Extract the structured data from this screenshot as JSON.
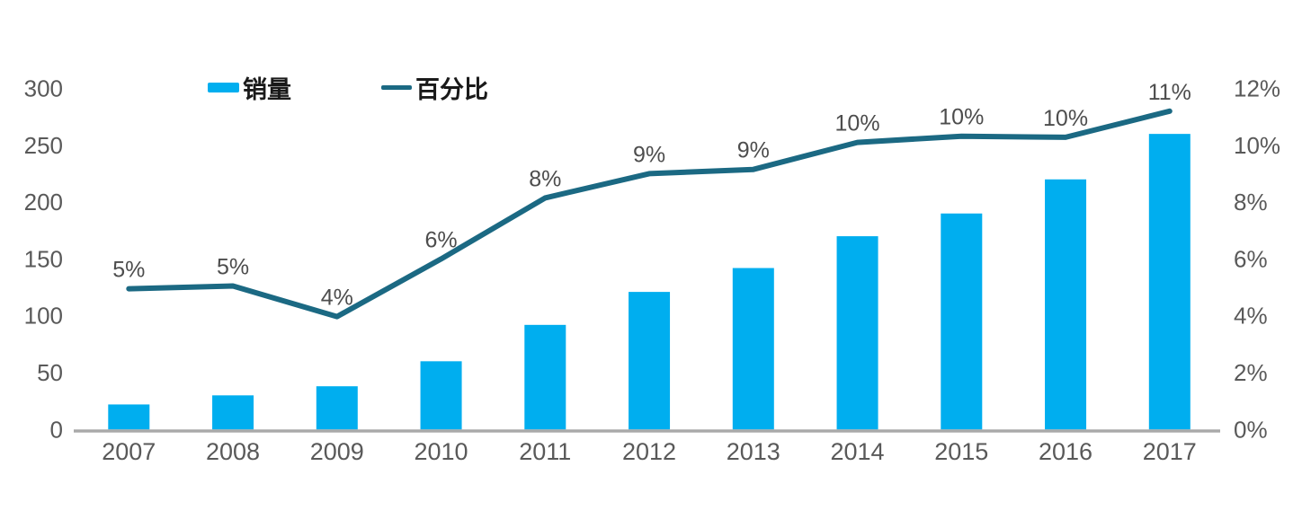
{
  "chart_data": {
    "type": "bar+line-combo",
    "title": "",
    "categories": [
      "2007",
      "2008",
      "2009",
      "2010",
      "2011",
      "2012",
      "2013",
      "2014",
      "2015",
      "2016",
      "2017"
    ],
    "series": [
      {
        "name": "销量",
        "type": "bar",
        "axis": "left",
        "values": [
          22,
          30,
          38,
          60,
          92,
          121,
          142,
          170,
          190,
          220,
          260
        ],
        "color": "#00AEEF"
      },
      {
        "name": "百分比",
        "type": "line",
        "axis": "right",
        "values": [
          4.95,
          5.05,
          3.97,
          6.0,
          8.15,
          9.0,
          9.15,
          10.1,
          10.32,
          10.28,
          11.2
        ],
        "point_labels": [
          "5%",
          "5%",
          "4%",
          "6%",
          "8%",
          "9%",
          "9%",
          "10%",
          "10%",
          "10%",
          "11%"
        ],
        "color": "#1B6983"
      }
    ],
    "left_axis": {
      "min": 0,
      "max": 300,
      "ticks": [
        "0",
        "50",
        "100",
        "150",
        "200",
        "250",
        "300"
      ]
    },
    "right_axis": {
      "min": 0,
      "max": 12,
      "ticks": [
        "0%",
        "2%",
        "4%",
        "6%",
        "8%",
        "10%",
        "12%"
      ]
    },
    "grid": "off",
    "legend_position": "top-left",
    "legend": [
      {
        "label": "销量",
        "swatch": "bar"
      },
      {
        "label": "百分比",
        "swatch": "line"
      }
    ],
    "colors": {
      "bar": "#00AEEF",
      "line": "#1B6983",
      "axis_line": "#A9A9A9",
      "axis_label": "#595959",
      "data_label": "#4D4D4D",
      "legend_text": "#1A1A1A",
      "background": "#FFFFFF"
    }
  }
}
